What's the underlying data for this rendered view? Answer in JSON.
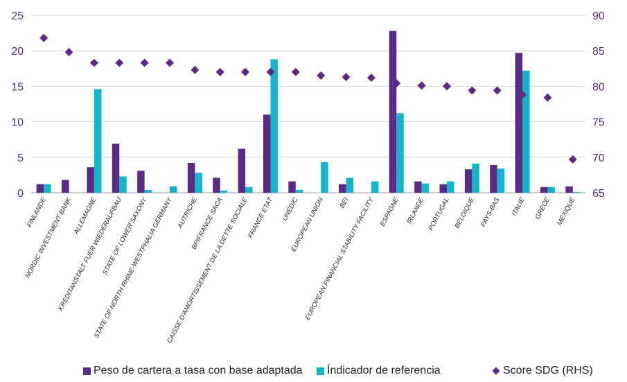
{
  "colors": {
    "peso": "#5b2a86",
    "indicador": "#12b5c9",
    "score": "#5b2a86",
    "axis": "#5b2a86",
    "grid": "#d3d3d3"
  },
  "chart_data": {
    "type": "bar",
    "categories": [
      "FINLANDE",
      "NORDIC INVESTMENT BANK",
      "ALLEMAGNE",
      "KREDITANSTALT FUER WIEDERAUFBAU",
      "STATE OF LOWER SAXONY",
      "STATE OF NORTH RHINE-WESTPHALIA GERMANY",
      "AUTRICHE",
      "BPIFRANCE SACA",
      "CAISSE D'AMORTISSEMENT DE LA DETTE SOCIALE",
      "FRANCE ETAT",
      "UNEDIC",
      "EUROPEAN UNION",
      "BEI",
      "EUROPEAN FINANCIAL STABILITY FACILITY",
      "ESPAGNE",
      "IRLANDE",
      "PORTUGAL",
      "BELGIQUE",
      "PAYS-BAS",
      "ITALIE",
      "GRECE",
      "MEXIQUE"
    ],
    "series": [
      {
        "name": "Peso de cartera a tasa con base adaptada",
        "type": "bar",
        "axis": "left",
        "values": [
          1.2,
          1.8,
          3.6,
          6.9,
          3.1,
          0,
          4.2,
          2.1,
          6.2,
          11.0,
          1.6,
          0,
          1.2,
          0,
          22.8,
          1.6,
          1.2,
          3.3,
          3.9,
          19.7,
          0.8,
          0.9
        ]
      },
      {
        "name": "Índicador de referencia",
        "type": "bar",
        "axis": "left",
        "values": [
          1.2,
          0,
          14.6,
          2.3,
          0.4,
          0.9,
          2.8,
          0.3,
          0.8,
          18.8,
          0.4,
          4.3,
          2.1,
          1.6,
          11.2,
          1.3,
          1.6,
          4.1,
          3.4,
          17.2,
          0.8,
          0.1
        ]
      },
      {
        "name": "Score SDG (RHS)",
        "type": "scatter",
        "axis": "right",
        "values": [
          86.8,
          84.8,
          83.3,
          83.3,
          83.3,
          83.3,
          82.3,
          82.0,
          82.0,
          82.0,
          82.0,
          81.5,
          81.3,
          81.2,
          80.4,
          80.1,
          80.0,
          79.4,
          79.4,
          78.8,
          78.4,
          69.7
        ]
      }
    ],
    "ylim": [
      0,
      25
    ],
    "yticks": [
      "0",
      "5",
      "10",
      "15",
      "20",
      "25"
    ],
    "y2lim": [
      65,
      90
    ],
    "y2ticks": [
      "65",
      "70",
      "75",
      "80",
      "85",
      "90"
    ],
    "grid": true,
    "legend_position": "bottom-right",
    "title": "",
    "xlabel": "",
    "ylabel": "",
    "y2label": ""
  }
}
